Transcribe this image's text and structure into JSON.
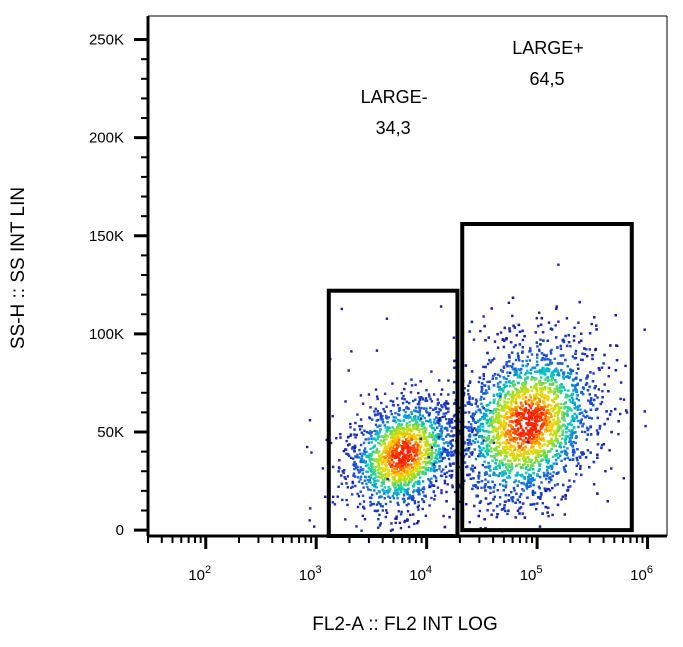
{
  "chart_data": {
    "type": "scatter",
    "style": "flow-cytometry density dot plot",
    "title": "",
    "xlabel": "FL2-A :: FL2 INT LOG",
    "ylabel": "SS-H :: SS INT LIN",
    "x_scale": "log",
    "xlim": [
      30,
      1500000
    ],
    "x_ticks": [
      {
        "value": 100,
        "base": "10",
        "exp": "2"
      },
      {
        "value": 1000,
        "base": "10",
        "exp": "3"
      },
      {
        "value": 10000,
        "base": "10",
        "exp": "4"
      },
      {
        "value": 100000,
        "base": "10",
        "exp": "5"
      },
      {
        "value": 1000000,
        "base": "10",
        "exp": "6"
      }
    ],
    "y_scale": "linear",
    "ylim": [
      -3000,
      262000
    ],
    "y_ticks": [
      {
        "value": 0,
        "label": "0"
      },
      {
        "value": 50000,
        "label": "50K"
      },
      {
        "value": 100000,
        "label": "100K"
      },
      {
        "value": 150000,
        "label": "150K"
      },
      {
        "value": 200000,
        "label": "200K"
      },
      {
        "value": 250000,
        "label": "250K"
      }
    ],
    "grid": false,
    "legend": "none",
    "colors": {
      "low_density": "#1a1aa6",
      "mid_density": "#00c8c8",
      "mid_high_density": "#a6e020",
      "high_density": "#ff2000",
      "gate": "#000000"
    },
    "clusters": [
      {
        "name": "LARGE-",
        "center_x": 6000,
        "center_y": 39000,
        "spread_log_x": 0.25,
        "spread_y": 14000,
        "events": 1700
      },
      {
        "name": "LARGE+",
        "center_x": 80000,
        "center_y": 55000,
        "spread_log_x": 0.32,
        "spread_y": 20000,
        "events": 3400
      }
    ],
    "gates": [
      {
        "name": "LARGE-",
        "percent": "34,3",
        "x_range": [
          1300,
          19000
        ],
        "y_range": [
          -3000,
          122000
        ]
      },
      {
        "name": "LARGE+",
        "percent": "64,5",
        "x_range": [
          21000,
          720000
        ],
        "y_range": [
          0,
          156000
        ]
      }
    ]
  }
}
